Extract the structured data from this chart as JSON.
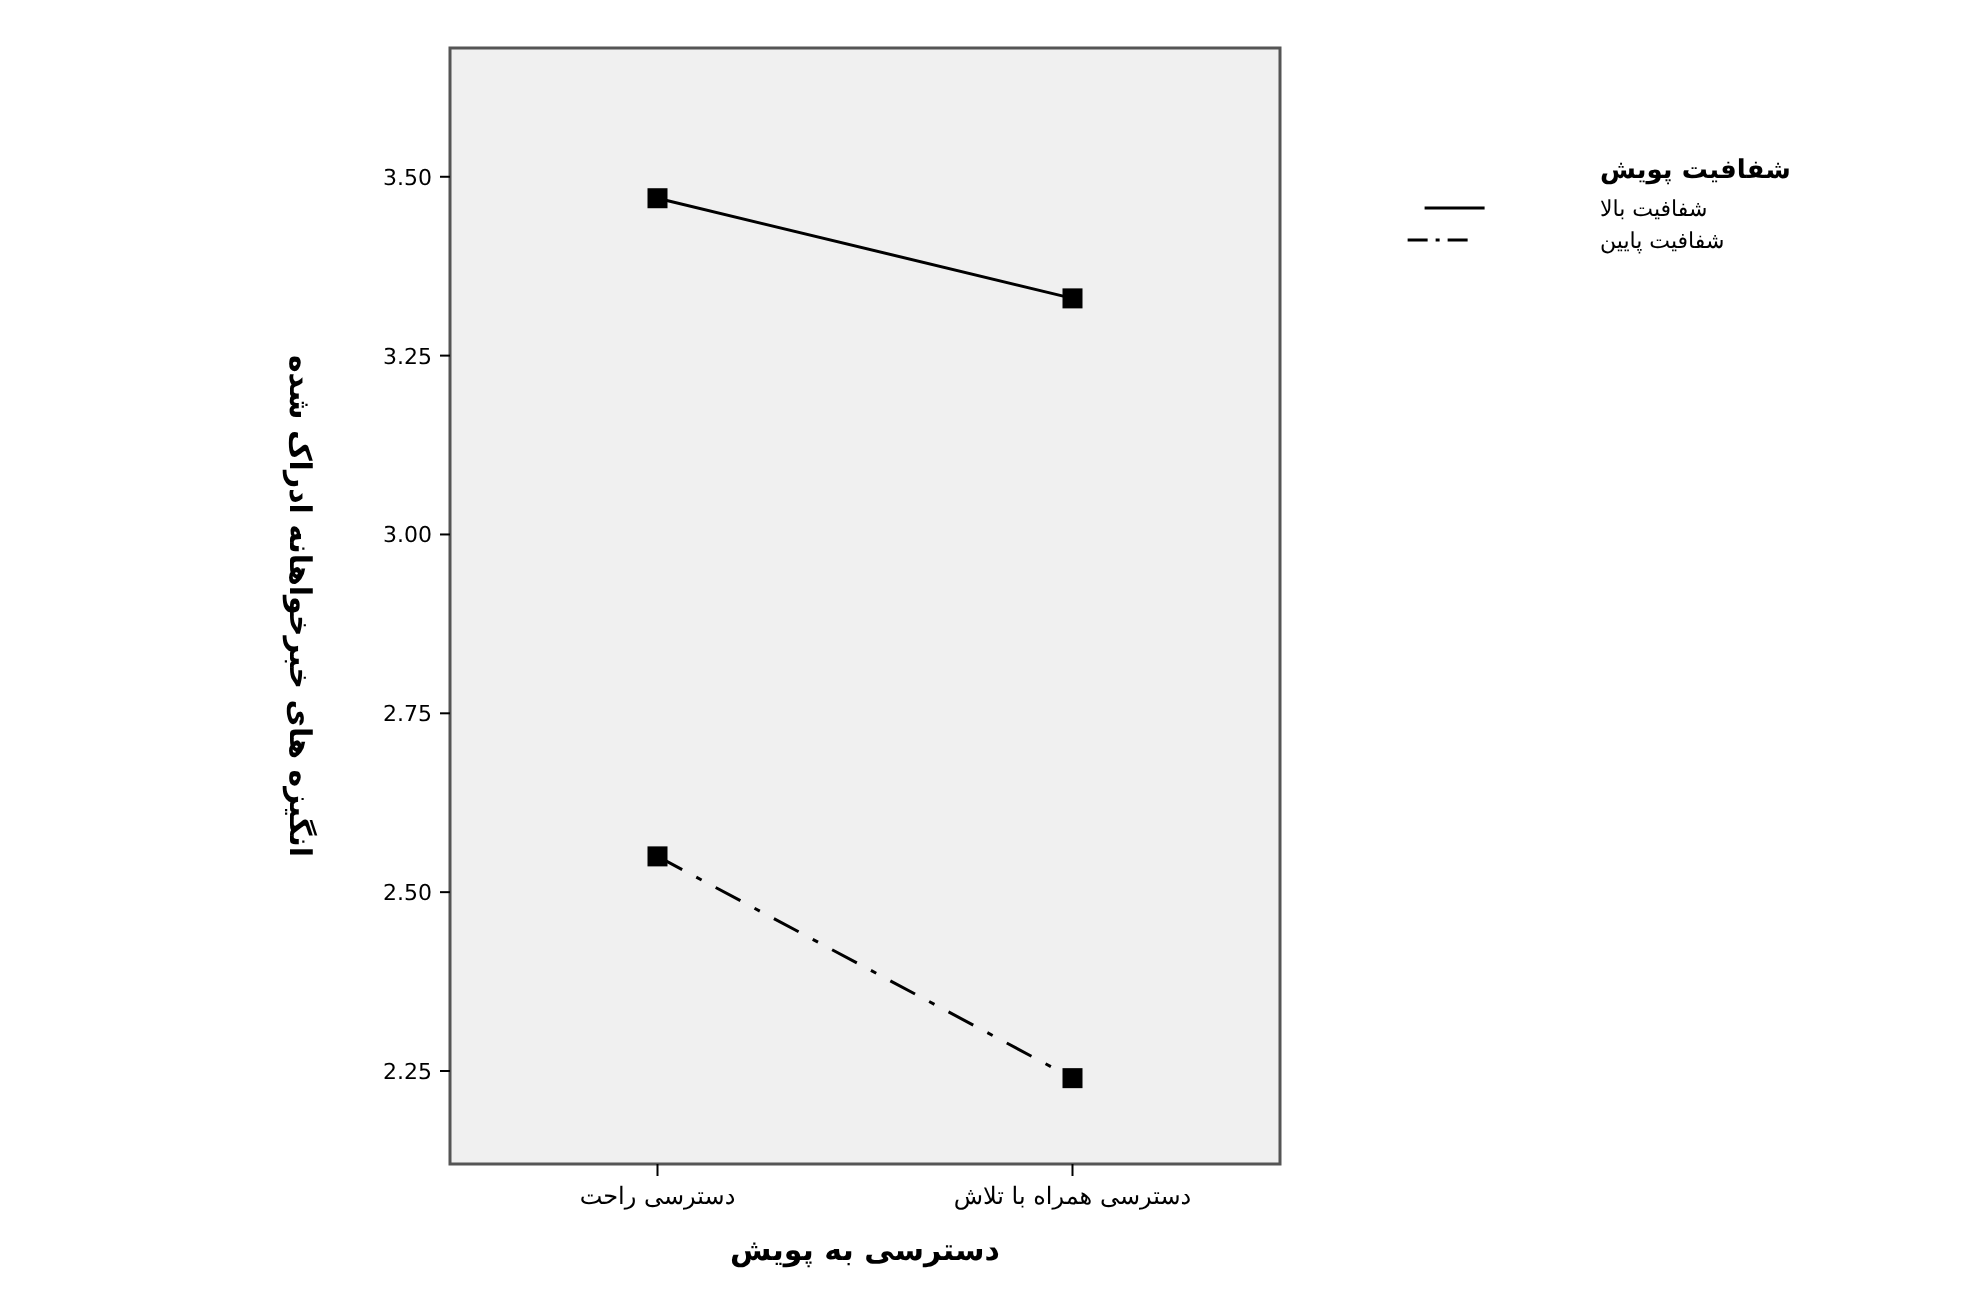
{
  "chart_data": {
    "type": "line",
    "xlabel": "دسترسی به پویش",
    "ylabel": "انگیزه های خبرخواهانه ادراک شده",
    "legend_title": "شفافیت پویش",
    "categories": [
      "دسترسی راحت",
      "دسترسی همراه با تلاش"
    ],
    "series": [
      {
        "name": "شفافیت بالا",
        "color": "#000000",
        "line_style": "solid",
        "values": [
          3.47,
          3.33
        ]
      },
      {
        "name": "شفافیت پایین",
        "color": "#000000",
        "line_style": "dashdot",
        "values": [
          2.55,
          2.24
        ]
      }
    ],
    "ylim": [
      2.12,
      3.68
    ],
    "yticks": [
      {
        "value": 2.25,
        "label": "2.25"
      },
      {
        "value": 2.5,
        "label": "2.50"
      },
      {
        "value": 2.75,
        "label": "2.75"
      },
      {
        "value": 3,
        "label": "3.00"
      },
      {
        "value": 3.25,
        "label": "3.25"
      },
      {
        "value": 3.5,
        "label": "3.50"
      }
    ],
    "marker": "square",
    "grid": false,
    "legend": "top right"
  }
}
